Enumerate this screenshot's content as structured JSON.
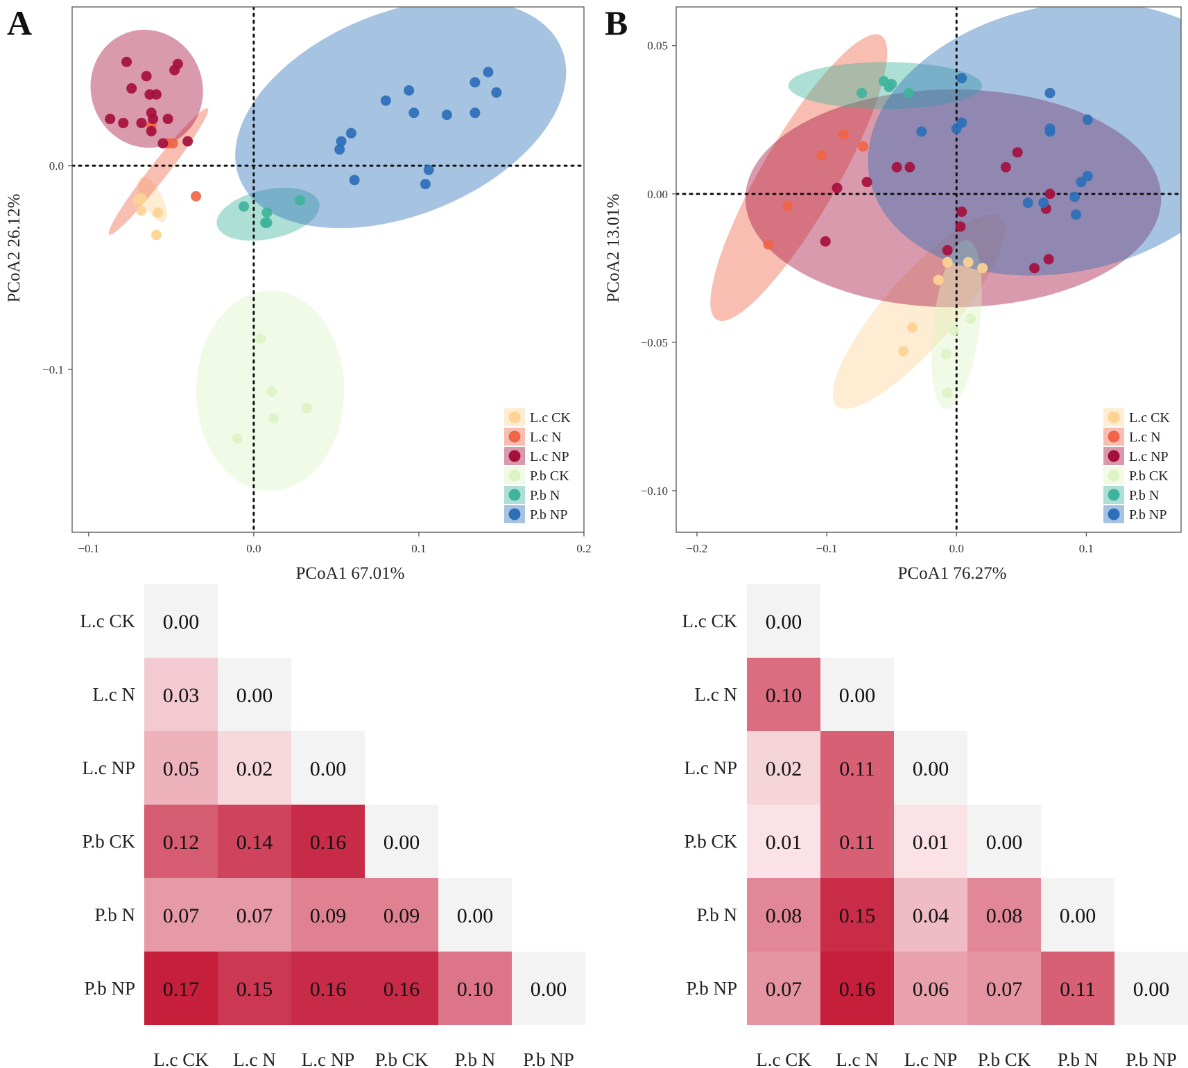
{
  "chart_data": [
    {
      "type": "scatter",
      "panel": "A",
      "xlabel": "PCoA1 67.01%",
      "ylabel": "PCoA2 26.12%",
      "xlim": [
        -0.11,
        0.2
      ],
      "ylim": [
        -0.18,
        0.078
      ],
      "xticks": [
        -0.1,
        0.0,
        0.1,
        0.2
      ],
      "xtick_labels": [
        "−0.1",
        "0.0",
        "0.1",
        "0.2"
      ],
      "yticks": [
        0.0,
        -0.1
      ],
      "ytick_labels": [
        "0.0",
        "−0.1"
      ],
      "legend_position": "bottom-right",
      "series": [
        {
          "name": "L.c CK",
          "color": "#fdd393",
          "ellipse": {
            "cx": -0.0613,
            "cy": -0.0165,
            "rx": 0.0152,
            "ry": 0.0048,
            "angle": 62
          },
          "points": [
            [
              -0.07,
              -0.017
            ],
            [
              -0.068,
              -0.016
            ],
            [
              -0.068,
              -0.022
            ],
            [
              -0.058,
              -0.023
            ],
            [
              -0.059,
              -0.034
            ]
          ]
        },
        {
          "name": "L.c N",
          "color": "#ef6548",
          "ellipse": {
            "cx": -0.0577,
            "cy": -0.0028,
            "rx": 0.0485,
            "ry": 0.0043,
            "angle": -52
          },
          "points": [
            [
              -0.062,
              0.02
            ],
            [
              -0.052,
              0.011
            ],
            [
              -0.049,
              0.011
            ],
            [
              -0.035,
              -0.015
            ]
          ]
        },
        {
          "name": "L.c NP",
          "color": "#a50f3c",
          "ellipse": {
            "cx": -0.0648,
            "cy": 0.0378,
            "rx": 0.0338,
            "ry": 0.0292,
            "angle": -20
          },
          "points": [
            [
              -0.077,
              0.051
            ],
            [
              -0.065,
              0.044
            ],
            [
              -0.046,
              0.05
            ],
            [
              -0.048,
              0.047
            ],
            [
              -0.074,
              0.038
            ],
            [
              -0.063,
              0.035
            ],
            [
              -0.059,
              0.035
            ],
            [
              -0.087,
              0.023
            ],
            [
              -0.079,
              0.021
            ],
            [
              -0.068,
              0.021
            ],
            [
              -0.062,
              0.026
            ],
            [
              -0.052,
              0.023
            ],
            [
              -0.061,
              0.023
            ],
            [
              -0.062,
              0.017
            ],
            [
              -0.055,
              0.011
            ],
            [
              -0.04,
              0.012
            ]
          ]
        },
        {
          "name": "P.b CK",
          "color": "#ddf3c4",
          "ellipse": {
            "cx": 0.01,
            "cy": -0.1105,
            "rx": 0.0448,
            "ry": 0.0492,
            "angle": 0
          },
          "points": [
            [
              0.004,
              -0.085
            ],
            [
              0.011,
              -0.111
            ],
            [
              0.012,
              -0.124
            ],
            [
              0.032,
              -0.119
            ],
            [
              -0.01,
              -0.134
            ]
          ]
        },
        {
          "name": "P.b N",
          "color": "#3fb39c",
          "ellipse": {
            "cx": 0.0087,
            "cy": -0.0238,
            "rx": 0.0317,
            "ry": 0.0121,
            "angle": -12
          },
          "points": [
            [
              -0.006,
              -0.02
            ],
            [
              0.008,
              -0.023
            ],
            [
              0.028,
              -0.017
            ],
            [
              0.008,
              -0.028
            ],
            [
              0.007,
              -0.028
            ]
          ]
        },
        {
          "name": "P.b NP",
          "color": "#2c6fb8",
          "ellipse": {
            "cx": 0.089,
            "cy": 0.0255,
            "rx": 0.1052,
            "ry": 0.0498,
            "angle": -22
          },
          "points": [
            [
              0.142,
              0.046
            ],
            [
              0.134,
              0.041
            ],
            [
              0.147,
              0.036
            ],
            [
              0.094,
              0.037
            ],
            [
              0.08,
              0.032
            ],
            [
              0.097,
              0.026
            ],
            [
              0.117,
              0.025
            ],
            [
              0.134,
              0.026
            ],
            [
              0.059,
              0.016
            ],
            [
              0.053,
              0.012
            ],
            [
              0.052,
              0.008
            ],
            [
              0.106,
              -0.002
            ],
            [
              0.061,
              -0.007
            ],
            [
              0.104,
              -0.009
            ]
          ]
        }
      ]
    },
    {
      "type": "scatter",
      "panel": "B",
      "xlabel": "PCoA1 76.27%",
      "ylabel": "PCoA2 13.01%",
      "xlim": [
        -0.216,
        0.173
      ],
      "ylim": [
        -0.114,
        0.063
      ],
      "xticks": [
        -0.2,
        -0.1,
        0.0,
        0.1
      ],
      "xtick_labels": [
        "−0.2",
        "−0.1",
        "0.0",
        "0.1"
      ],
      "yticks": [
        0.05,
        0.0,
        -0.05,
        -0.1
      ],
      "ytick_labels": [
        "0.05",
        "0.00",
        "−0.05",
        "−0.10"
      ],
      "legend_position": "bottom-right",
      "series": [
        {
          "name": "L.c CK",
          "color": "#fdd393",
          "ellipse": {
            "cx": -0.029,
            "cy": -0.0397,
            "rx": 0.0963,
            "ry": 0.0119,
            "angle": -49
          },
          "points": [
            [
              -0.014,
              -0.029
            ],
            [
              -0.007,
              -0.023
            ],
            [
              0.009,
              -0.023
            ],
            [
              0.02,
              -0.025
            ],
            [
              -0.034,
              -0.045
            ],
            [
              -0.041,
              -0.053
            ]
          ]
        },
        {
          "name": "L.c N",
          "color": "#ef6548",
          "ellipse": {
            "cx": -0.1215,
            "cy": 0.0055,
            "rx": 0.1265,
            "ry": 0.0128,
            "angle": -60
          },
          "points": [
            [
              -0.087,
              0.02
            ],
            [
              -0.072,
              0.016
            ],
            [
              -0.104,
              0.013
            ],
            [
              -0.13,
              -0.004
            ],
            [
              -0.145,
              -0.017
            ]
          ]
        },
        {
          "name": "L.c NP",
          "color": "#a50f3c",
          "ellipse": {
            "cx": -0.0025,
            "cy": -0.0015,
            "rx": 0.1602,
            "ry": 0.0367,
            "angle": 0
          },
          "points": [
            [
              -0.046,
              0.009
            ],
            [
              -0.036,
              0.009
            ],
            [
              -0.092,
              0.002
            ],
            [
              -0.069,
              0.004
            ],
            [
              0.047,
              0.014
            ],
            [
              0.038,
              0.009
            ],
            [
              0.072,
              0.0
            ],
            [
              0.069,
              -0.005
            ],
            [
              0.004,
              -0.006
            ],
            [
              0.003,
              -0.011
            ],
            [
              -0.007,
              -0.019
            ],
            [
              -0.101,
              -0.016
            ],
            [
              0.071,
              -0.022
            ],
            [
              0.06,
              -0.025
            ]
          ]
        },
        {
          "name": "P.b CK",
          "color": "#ddf3c4",
          "ellipse": {
            "cx": 0.0,
            "cy": -0.044,
            "rx": 0.0657,
            "ry": 0.0078,
            "angle": -83
          },
          "points": [
            [
              0.011,
              -0.042
            ],
            [
              -0.002,
              -0.046
            ],
            [
              -0.008,
              -0.054
            ],
            [
              -0.007,
              -0.067
            ]
          ]
        },
        {
          "name": "P.b N",
          "color": "#3fb39c",
          "ellipse": {
            "cx": -0.055,
            "cy": 0.0365,
            "rx": 0.0746,
            "ry": 0.0079,
            "angle": 0
          },
          "points": [
            [
              -0.056,
              0.038
            ],
            [
              -0.05,
              0.037
            ],
            [
              -0.052,
              0.036
            ],
            [
              -0.073,
              0.034
            ],
            [
              -0.037,
              0.034
            ]
          ]
        },
        {
          "name": "P.b NP",
          "color": "#2c6fb8",
          "ellipse": {
            "cx": 0.0815,
            "cy": 0.0185,
            "rx": 0.1515,
            "ry": 0.0449,
            "angle": -12
          },
          "points": [
            [
              0.004,
              0.039
            ],
            [
              0.072,
              0.034
            ],
            [
              0.101,
              0.025
            ],
            [
              0.072,
              0.022
            ],
            [
              0.004,
              0.024
            ],
            [
              0.0,
              0.022
            ],
            [
              -0.027,
              0.021
            ],
            [
              0.072,
              0.021
            ],
            [
              0.101,
              0.006
            ],
            [
              0.096,
              0.004
            ],
            [
              0.055,
              -0.003
            ],
            [
              0.067,
              -0.003
            ],
            [
              0.091,
              -0.001
            ],
            [
              0.092,
              -0.007
            ]
          ]
        }
      ]
    },
    {
      "type": "heatmap",
      "panel": "A-matrix",
      "labels": [
        "L.c CK",
        "L.c N",
        "L.c NP",
        "P.b CK",
        "P.b N",
        "P.b NP"
      ],
      "values": [
        [
          0.0
        ],
        [
          0.03,
          0.0
        ],
        [
          0.05,
          0.02,
          0.0
        ],
        [
          0.12,
          0.14,
          0.16,
          0.0
        ],
        [
          0.07,
          0.07,
          0.09,
          0.09,
          0.0
        ],
        [
          0.17,
          0.15,
          0.16,
          0.16,
          0.1,
          0.0
        ]
      ],
      "color_range": [
        0,
        0.17
      ],
      "colors": {
        "zero": "#f3f3f3",
        "low": "#fdeff1",
        "high": "#c51f3c"
      }
    },
    {
      "type": "heatmap",
      "panel": "B-matrix",
      "labels": [
        "L.c CK",
        "L.c N",
        "L.c NP",
        "P.b CK",
        "P.b N",
        "P.b NP"
      ],
      "values": [
        [
          0.0
        ],
        [
          0.1,
          0.0
        ],
        [
          0.02,
          0.11,
          0.0
        ],
        [
          0.01,
          0.11,
          0.01,
          0.0
        ],
        [
          0.08,
          0.15,
          0.04,
          0.08,
          0.0
        ],
        [
          0.07,
          0.16,
          0.06,
          0.07,
          0.11,
          0.0
        ]
      ],
      "color_range": [
        0,
        0.16
      ],
      "colors": {
        "zero": "#f3f3f3",
        "low": "#fdeff1",
        "high": "#c51f3c"
      }
    }
  ],
  "panel_letters": [
    "A",
    "B"
  ],
  "value_format_decimals": 2
}
